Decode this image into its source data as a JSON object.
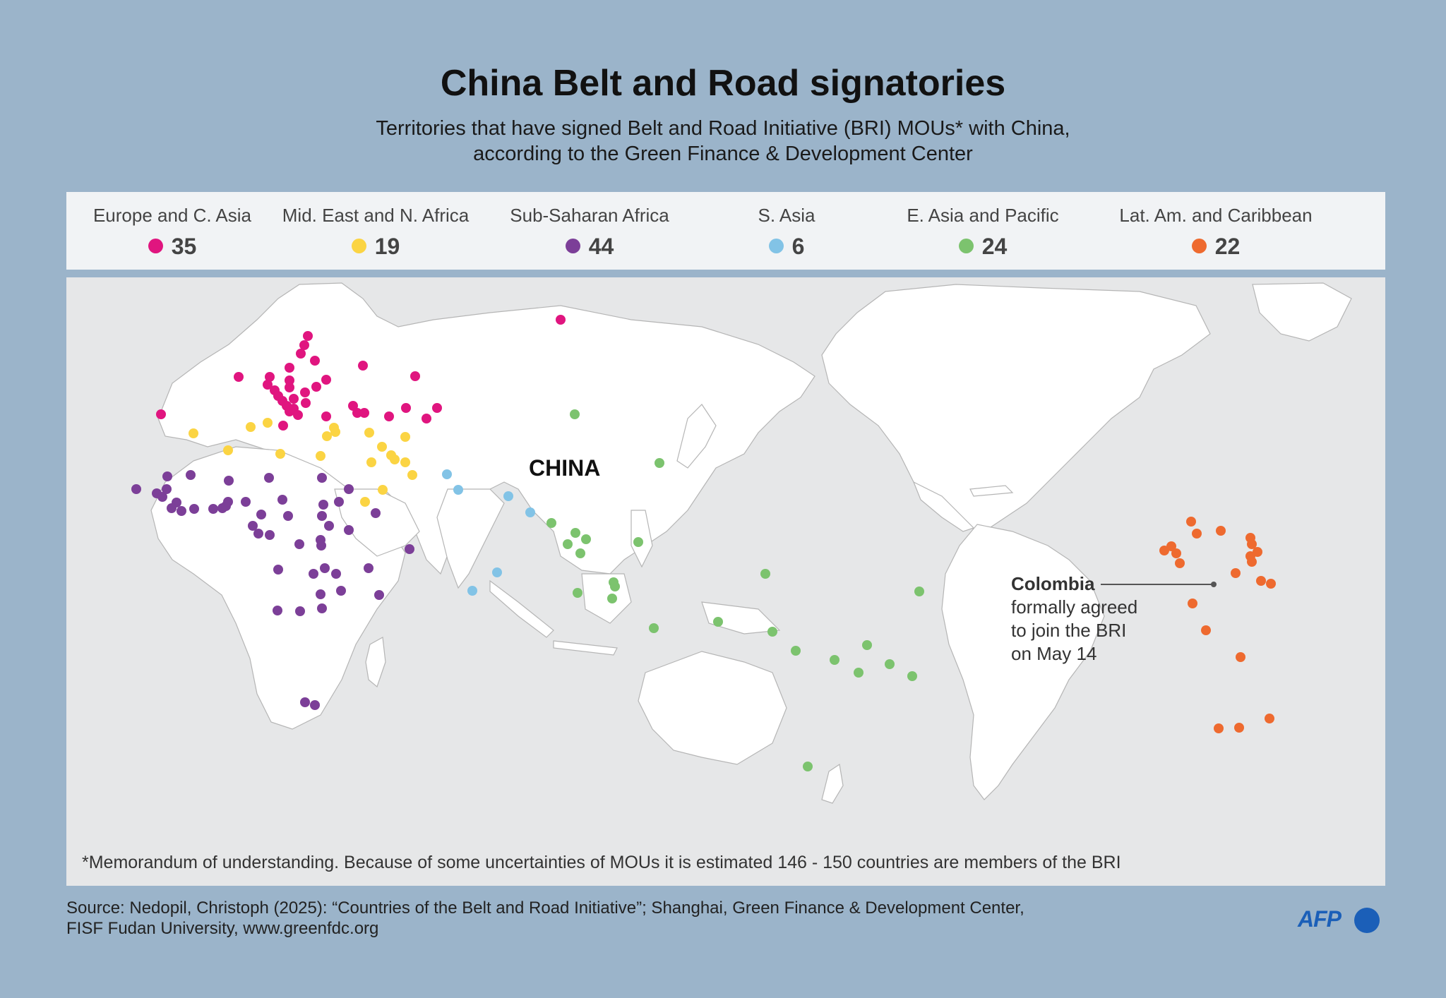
{
  "title": "China Belt and Road signatories",
  "subtitle_line1": "Territories that have signed Belt and Road Initiative (BRI) MOUs* with China,",
  "subtitle_line2": "according to the Green Finance & Development Center",
  "legend": [
    {
      "label": "Europe and C. Asia",
      "count": "35",
      "color": "#e0157f"
    },
    {
      "label": "Mid. East and N. Africa",
      "count": "19",
      "color": "#fbd443"
    },
    {
      "label": "Sub-Saharan Africa",
      "count": "44",
      "color": "#7c3f98"
    },
    {
      "label": "S. Asia",
      "count": "6",
      "color": "#82c3e6"
    },
    {
      "label": "E. Asia and Pacific",
      "count": "24",
      "color": "#7cc36e"
    },
    {
      "label": "Lat. Am. and Caribbean",
      "count": "22",
      "color": "#ee6a2f"
    }
  ],
  "map": {
    "china_label": "CHINA",
    "annotation": {
      "country": "Colombia",
      "line1": "formally agreed",
      "line2": "to join the BRI",
      "line3": "on May 14"
    },
    "footnote": "*Memorandum of understanding. Because of some uncertainties of MOUs it is estimated 146 - 150 countries are members of the BRI"
  },
  "source_line1": "Source: Nedopil, Christoph (2025): “Countries of the Belt and Road Initiative”; Shanghai, Green Finance & Development Center,",
  "source_line2": "FISF Fudan University, www.greenfdc.org",
  "logo_text": "AFP"
}
